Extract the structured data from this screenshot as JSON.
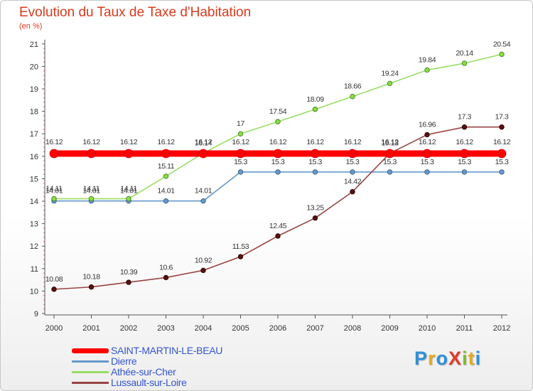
{
  "title": "Evolution du Taux de Taxe d'Habitation",
  "subtitle": "(en %)",
  "chart_data": {
    "type": "line",
    "title": "Evolution du Taux de Taxe d'Habitation",
    "ylabel": "(en %)",
    "xlabel": "",
    "x": [
      "2000",
      "2001",
      "2002",
      "2003",
      "2004",
      "2005",
      "2006",
      "2007",
      "2008",
      "2009",
      "2010",
      "2011",
      "2012"
    ],
    "ylim": [
      9,
      21
    ],
    "yticks": [
      "9",
      "10",
      "11",
      "12",
      "13",
      "14",
      "15",
      "16",
      "17",
      "18",
      "19",
      "20",
      "21"
    ],
    "grid": false,
    "legend": "bottom-left",
    "series": [
      {
        "name": "SAINT-MARTIN-LE-BEAU",
        "color": "#ff0000",
        "values": [
          16.12,
          16.12,
          16.12,
          16.12,
          16.12,
          16.12,
          16.12,
          16.12,
          16.12,
          16.12,
          16.12,
          16.12,
          16.12
        ],
        "labels": [
          "16.12",
          "16.12",
          "16.12",
          "16.12",
          "16.12",
          "16.12",
          "16.12",
          "16.12",
          "16.12",
          "16.12",
          "16.12",
          "16.12",
          "16.12"
        ]
      },
      {
        "name": "Dierre",
        "color": "#6699cc",
        "values": [
          14.01,
          14.01,
          14.01,
          14.01,
          14.01,
          15.3,
          15.3,
          15.3,
          15.3,
          15.3,
          15.3,
          15.3,
          15.3
        ],
        "labels": [
          "14.01",
          "14.01",
          "14.01",
          "14.01",
          "14.01",
          "15.3",
          "15.3",
          "15.3",
          "15.3",
          "15.3",
          "15.3",
          "15.3",
          "15.3"
        ]
      },
      {
        "name": "Athée-sur-Cher",
        "color": "#99dd66",
        "values": [
          14.11,
          14.11,
          14.11,
          15.11,
          16.14,
          17,
          17.54,
          18.09,
          18.66,
          19.24,
          19.84,
          20.14,
          20.54
        ],
        "labels": [
          "14.11",
          "14.11",
          "14.11",
          "15.11",
          "16.14",
          "17",
          "17.54",
          "18.09",
          "18.66",
          "19.24",
          "19.84",
          "20.14",
          "20.54"
        ]
      },
      {
        "name": "Lussault-sur-Loire",
        "color": "#994444",
        "values": [
          10.08,
          10.18,
          10.39,
          10.6,
          10.92,
          11.53,
          12.45,
          13.25,
          14.42,
          16.13,
          16.96,
          17.3,
          17.3
        ],
        "labels": [
          "10.08",
          "10.18",
          "10.39",
          "10.6",
          "10.92",
          "11.53",
          "12.45",
          "13.25",
          "14.42",
          "16.13",
          "16.96",
          "17.3",
          "17.3"
        ]
      }
    ]
  },
  "legend": {
    "items": [
      {
        "label": "SAINT-MARTIN-LE-BEAU",
        "color": "#ff0000"
      },
      {
        "label": "Dierre",
        "color": "#6699cc"
      },
      {
        "label": "Athée-sur-Cher",
        "color": "#99dd66"
      },
      {
        "label": "Lussault-sur-Loire",
        "color": "#994444"
      }
    ]
  },
  "logo": {
    "text": "ProXiti",
    "letters": [
      {
        "ch": "P",
        "color": "#2f8fd8"
      },
      {
        "ch": "r",
        "color": "#e8a81c"
      },
      {
        "ch": "o",
        "color": "#2f8fd8"
      },
      {
        "ch": "X",
        "color": "#e23b2a"
      },
      {
        "ch": "i",
        "color": "#7dbb2b"
      },
      {
        "ch": "t",
        "color": "#e8a81c"
      },
      {
        "ch": "i",
        "color": "#2f8fd8"
      }
    ]
  }
}
